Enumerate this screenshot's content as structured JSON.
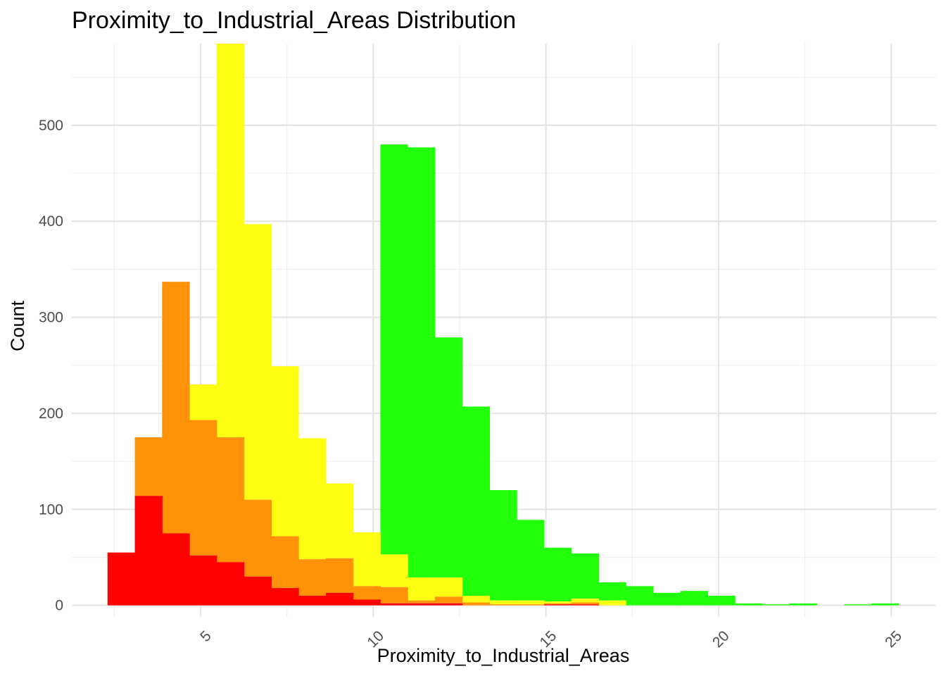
{
  "chart_data": {
    "type": "bar",
    "subtype": "stacked-histogram",
    "title": "Proximity_to_Industrial_Areas Distribution",
    "xlabel": "Proximity_to_Industrial_Areas",
    "ylabel": "Count",
    "xlim": [
      1.27,
      26.3
    ],
    "ylim": [
      -12,
      585
    ],
    "x_ticks": [
      5,
      10,
      15,
      20,
      25
    ],
    "y_ticks": [
      0,
      100,
      200,
      300,
      400,
      500
    ],
    "grid": true,
    "legend": "none",
    "bin_width": 0.79,
    "bin_centers": [
      2.7,
      3.49,
      4.28,
      5.07,
      5.86,
      6.65,
      7.44,
      8.23,
      9.02,
      9.81,
      10.6,
      11.39,
      12.18,
      12.97,
      13.76,
      14.55,
      15.34,
      16.13,
      16.92,
      17.71,
      18.5,
      19.29,
      20.08,
      20.87,
      21.66,
      22.45,
      23.24,
      24.03,
      24.82
    ],
    "series": [
      {
        "color": "#FF0000",
        "values": [
          55,
          114,
          75,
          52,
          45,
          30,
          18,
          10,
          13,
          6,
          2,
          2,
          2,
          0,
          0,
          0,
          1,
          1,
          0,
          0,
          0,
          0,
          0,
          0,
          0,
          0,
          0,
          0,
          0
        ]
      },
      {
        "color": "#FF9209",
        "values": [
          0,
          61,
          262,
          141,
          130,
          80,
          54,
          38,
          36,
          14,
          17,
          3,
          7,
          3,
          1,
          1,
          1,
          2,
          0,
          0,
          0,
          0,
          0,
          0,
          0,
          0,
          0,
          0,
          0
        ]
      },
      {
        "color": "#FFFF14",
        "values": [
          0,
          0,
          0,
          37,
          410,
          287,
          177,
          126,
          78,
          56,
          34,
          24,
          20,
          7,
          4,
          4,
          2,
          4,
          5,
          0,
          0,
          0,
          0,
          0,
          0,
          0,
          0,
          0,
          0
        ]
      },
      {
        "color": "#22FF0A",
        "values": [
          0,
          0,
          0,
          0,
          0,
          0,
          0,
          0,
          0,
          0,
          427,
          448,
          250,
          197,
          115,
          84,
          56,
          47,
          19,
          20,
          13,
          15,
          10,
          2,
          1,
          2,
          0,
          1,
          2
        ]
      }
    ]
  }
}
